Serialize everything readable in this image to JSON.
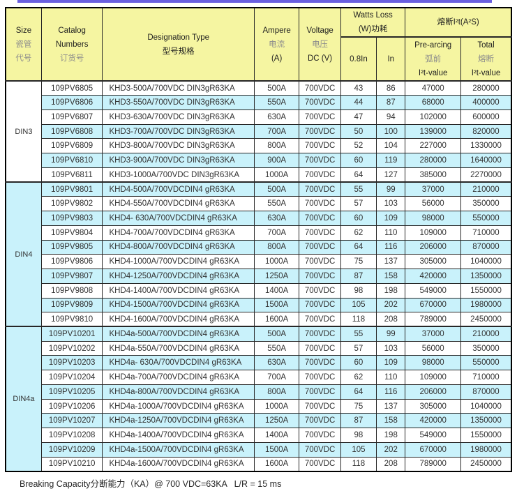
{
  "colors": {
    "accent_bar": "#6A5FE0",
    "header_bg": "#F5F5A1",
    "stripe_bg": "#C9F2FB",
    "header_muted_text": "#8c8c8c",
    "body_text": "#323232"
  },
  "table": {
    "header": {
      "size": [
        "Size",
        "瓷管",
        "代号"
      ],
      "catalog": [
        "Catalog",
        "Numbers",
        "订货号"
      ],
      "designation": [
        "Designation Type",
        "型号规格"
      ],
      "ampere": [
        "Ampere",
        "电流",
        "(A)"
      ],
      "voltage": [
        "Voltage",
        "电压",
        "DC (V)"
      ],
      "watts_loss": [
        "Watts Loss",
        "(W)功耗"
      ],
      "i2t_group": "熔断I²t(A²S)",
      "watts_08in": "0.8In",
      "watts_in": "In",
      "prearcing": [
        "Pre-arcing",
        "弧前",
        "I²t-value"
      ],
      "total": [
        "Total",
        "熔断",
        "I²t-value"
      ]
    },
    "row_columns": [
      "catalog_number",
      "designation_type",
      "ampere",
      "voltage",
      "watts_loss_0.8in",
      "watts_loss_in",
      "prearcing_i2t_value",
      "total_i2t_value"
    ],
    "sections": [
      {
        "size_label": "DIN3",
        "rows": [
          [
            "109PV6805",
            "KHD3-500A/700VDC DIN3gR63KA",
            "500A",
            "700VDC",
            "43",
            "86",
            "47000",
            "280000"
          ],
          [
            "109PV6806",
            "KHD3-550A/700VDC DIN3gR63KA",
            "550A",
            "700VDC",
            "44",
            "87",
            "68000",
            "400000"
          ],
          [
            "109PV6807",
            "KHD3-630A/700VDC DIN3gR63KA",
            "630A",
            "700VDC",
            "47",
            "94",
            "102000",
            "600000"
          ],
          [
            "109PV6808",
            "KHD3-700A/700VDC DIN3gR63KA",
            "700A",
            "700VDC",
            "50",
            "100",
            "139000",
            "820000"
          ],
          [
            "109PV6809",
            "KHD3-800A/700VDC DIN3gR63KA",
            "800A",
            "700VDC",
            "52",
            "104",
            "227000",
            "1330000"
          ],
          [
            "109PV6810",
            "KHD3-900A/700VDC DIN3gR63KA",
            "900A",
            "700VDC",
            "60",
            "119",
            "280000",
            "1640000"
          ],
          [
            "109PV6811",
            "KHD3-1000A/700VDC DIN3gR63KA",
            "1000A",
            "700VDC",
            "64",
            "127",
            "385000",
            "2270000"
          ]
        ]
      },
      {
        "size_label": "DIN4",
        "rows": [
          [
            "109PV9801",
            "KHD4-500A/700VDCDIN4 gR63KA",
            "500A",
            "700VDC",
            "55",
            "99",
            "37000",
            "210000"
          ],
          [
            "109PV9802",
            "KHD4-550A/700VDCDIN4 gR63KA",
            "550A",
            "700VDC",
            "57",
            "103",
            "56000",
            "350000"
          ],
          [
            "109PV9803",
            "KHD4- 630A/700VDCDIN4 gR63KA",
            "630A",
            "700VDC",
            "60",
            "109",
            "98000",
            "550000"
          ],
          [
            "109PV9804",
            "KHD4-700A/700VDCDIN4 gR63KA",
            "700A",
            "700VDC",
            "62",
            "110",
            "109000",
            "710000"
          ],
          [
            "109PV9805",
            "KHD4-800A/700VDCDIN4 gR63KA",
            "800A",
            "700VDC",
            "64",
            "116",
            "206000",
            "870000"
          ],
          [
            "109PV9806",
            "KHD4-1000A/700VDCDIN4 gR63KA",
            "1000A",
            "700VDC",
            "75",
            "137",
            "305000",
            "1040000"
          ],
          [
            "109PV9807",
            "KHD4-1250A/700VDCDIN4 gR63KA",
            "1250A",
            "700VDC",
            "87",
            "158",
            "420000",
            "1350000"
          ],
          [
            "109PV9808",
            "KHD4-1400A/700VDCDIN4 gR63KA",
            "1400A",
            "700VDC",
            "98",
            "198",
            "549000",
            "1550000"
          ],
          [
            "109PV9809",
            "KHD4-1500A/700VDCDIN4 gR63KA",
            "1500A",
            "700VDC",
            "105",
            "202",
            "670000",
            "1980000"
          ],
          [
            "109PV9810",
            "KHD4-1600A/700VDCDIN4 gR63KA",
            "1600A",
            "700VDC",
            "118",
            "208",
            "789000",
            "2450000"
          ]
        ]
      },
      {
        "size_label": "DIN4a",
        "rows": [
          [
            "109PV10201",
            "KHD4a-500A/700VDCDIN4 gR63KA",
            "500A",
            "700VDC",
            "55",
            "99",
            "37000",
            "210000"
          ],
          [
            "109PV10202",
            "KHD4a-550A/700VDCDIN4 gR63KA",
            "550A",
            "700VDC",
            "57",
            "103",
            "56000",
            "350000"
          ],
          [
            "109PV10203",
            "KHD4a- 630A/700VDCDIN4 gR63KA",
            "630A",
            "700VDC",
            "60",
            "109",
            "98000",
            "550000"
          ],
          [
            "109PV10204",
            "KHD4a-700A/700VDCDIN4 gR63KA",
            "700A",
            "700VDC",
            "62",
            "110",
            "109000",
            "710000"
          ],
          [
            "109PV10205",
            "KHD4a-800A/700VDCDIN4 gR63KA",
            "800A",
            "700VDC",
            "64",
            "116",
            "206000",
            "870000"
          ],
          [
            "109PV10206",
            "KHD4a-1000A/700VDCDIN4 gR63KA",
            "1000A",
            "700VDC",
            "75",
            "137",
            "305000",
            "1040000"
          ],
          [
            "109PV10207",
            "KHD4a-1250A/700VDCDIN4 gR63KA",
            "1250A",
            "700VDC",
            "87",
            "158",
            "420000",
            "1350000"
          ],
          [
            "109PV10208",
            "KHD4a-1400A/700VDCDIN4 gR63KA",
            "1400A",
            "700VDC",
            "98",
            "198",
            "549000",
            "1550000"
          ],
          [
            "109PV10209",
            "KHD4a-1500A/700VDCDIN4 gR63KA",
            "1500A",
            "700VDC",
            "105",
            "202",
            "670000",
            "1980000"
          ],
          [
            "109PV10210",
            "KHD4a-1600A/700VDCDIN4 gR63KA",
            "1600A",
            "700VDC",
            "118",
            "208",
            "789000",
            "2450000"
          ]
        ]
      }
    ]
  },
  "footer": {
    "breaking_capacity_note": "Breaking Capacity分断能力（KA）@ 700 VDC=63KA   L/R = 15 ms"
  }
}
